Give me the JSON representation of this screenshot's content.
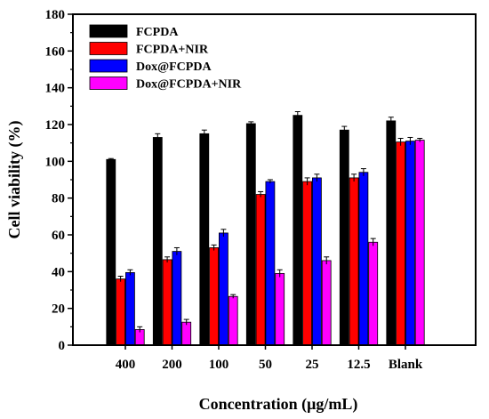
{
  "chart_data": {
    "type": "bar",
    "categories": [
      "400",
      "200",
      "100",
      "50",
      "25",
      "12.5",
      "Blank"
    ],
    "series": [
      {
        "name": "FCPDA",
        "color": "#000000",
        "values": [
          101,
          113,
          115,
          120.5,
          125,
          117,
          122
        ],
        "errors": [
          0.5,
          2,
          2,
          1,
          2,
          2,
          2
        ]
      },
      {
        "name": "FCPDA+NIR",
        "color": "#ff0000",
        "values": [
          36,
          46.5,
          53,
          82,
          89,
          91,
          110.5
        ],
        "errors": [
          1.5,
          1.5,
          1.5,
          1.5,
          2,
          2,
          2
        ]
      },
      {
        "name": "Dox@FCPDA",
        "color": "#0000ff",
        "values": [
          39.5,
          51,
          61,
          89,
          91,
          94,
          111
        ],
        "errors": [
          1.5,
          2,
          2,
          1,
          2,
          2,
          2
        ]
      },
      {
        "name": "Dox@FCPDA+NIR",
        "color": "#ff00ff",
        "values": [
          8.5,
          12.5,
          26.5,
          39,
          46,
          56,
          111.5
        ],
        "errors": [
          1.5,
          1.5,
          1,
          2,
          2,
          2,
          1
        ]
      }
    ],
    "xlabel": "Concentration (μg/mL)",
    "ylabel": "Cell viability (%)",
    "ylim": [
      0,
      180
    ],
    "yticks": [
      "0",
      "20",
      "40",
      "60",
      "80",
      "100",
      "120",
      "140",
      "160",
      "180"
    ],
    "grid": false,
    "legend_position": "top-left"
  }
}
